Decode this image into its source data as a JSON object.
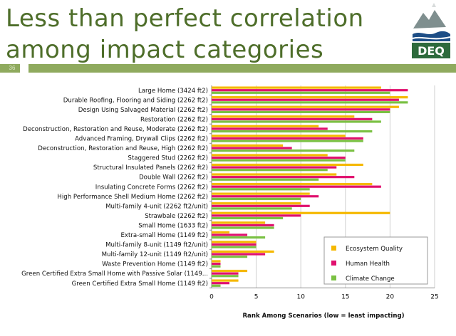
{
  "slide": {
    "title": "Less than perfect correlation among impact categories",
    "number": "36",
    "logo_text": "DEQ"
  },
  "colors": {
    "title": "#4e6e2a",
    "band": "#8faa5e",
    "ecosystem": "#f5b800",
    "human": "#e0106e",
    "climate": "#7ac143"
  },
  "chart_data": {
    "type": "bar",
    "orientation": "horizontal",
    "title": "",
    "xlabel": "Rank Among Scenarios (low = least impacting)",
    "ylabel": "",
    "xlim": [
      0,
      25
    ],
    "xticks": [
      0,
      5,
      10,
      15,
      20,
      25
    ],
    "grid": true,
    "legend_position": "bottom-right",
    "categories": [
      "Large Home (3424 ft2)",
      "Durable Roofing, Flooring and Siding (2262 ft2)",
      "Design Using Salvaged Material (2262 ft2)",
      "Restoration (2262 ft2)",
      "Deconstruction, Restoration and Reuse, Moderate (2262 ft2)",
      "Advanced Framing, Drywall Clips (2262 ft2)",
      "Deconstruction, Restoration and Reuse, High (2262 ft2)",
      "Staggered Stud (2262 ft2)",
      "Structural Insulated Panels (2262 ft2)",
      "Double Wall (2262 ft2)",
      "Insulating Concrete Forms (2262 ft2)",
      "High Performance Shell Medium Home (2262 ft2)",
      "Multi-family 4-unit (2262 ft2/unit)",
      "Strawbale (2262 ft2)",
      "Small Home (1633 ft2)",
      "Extra-small Home (1149 ft2)",
      "Multi-family 8-unit (1149 ft2/unit)",
      "Multi-family 12-unit (1149 ft2/unit)",
      "Waste Prevention Home (1149 ft2)",
      "Green Certified Extra Small Home with Passive Solar (1149...",
      "Green Certified Extra Small Home (1149 ft2)"
    ],
    "series": [
      {
        "name": "Ecosystem Quality",
        "values": [
          19,
          22,
          21,
          16,
          12,
          15,
          8,
          13,
          17,
          14,
          18,
          11,
          10,
          20,
          6,
          2,
          5,
          7,
          1,
          4,
          3
        ]
      },
      {
        "name": "Human Health",
        "values": [
          22,
          21,
          20,
          18,
          13,
          17,
          9,
          15,
          14,
          16,
          19,
          12,
          11,
          10,
          7,
          4,
          5,
          6,
          1,
          3,
          2
        ]
      },
      {
        "name": "Climate Change",
        "values": [
          20,
          22,
          20,
          19,
          18,
          17,
          16,
          15,
          13,
          12,
          11,
          10,
          9,
          8,
          7,
          6,
          5,
          4,
          1,
          3,
          1
        ]
      }
    ]
  }
}
